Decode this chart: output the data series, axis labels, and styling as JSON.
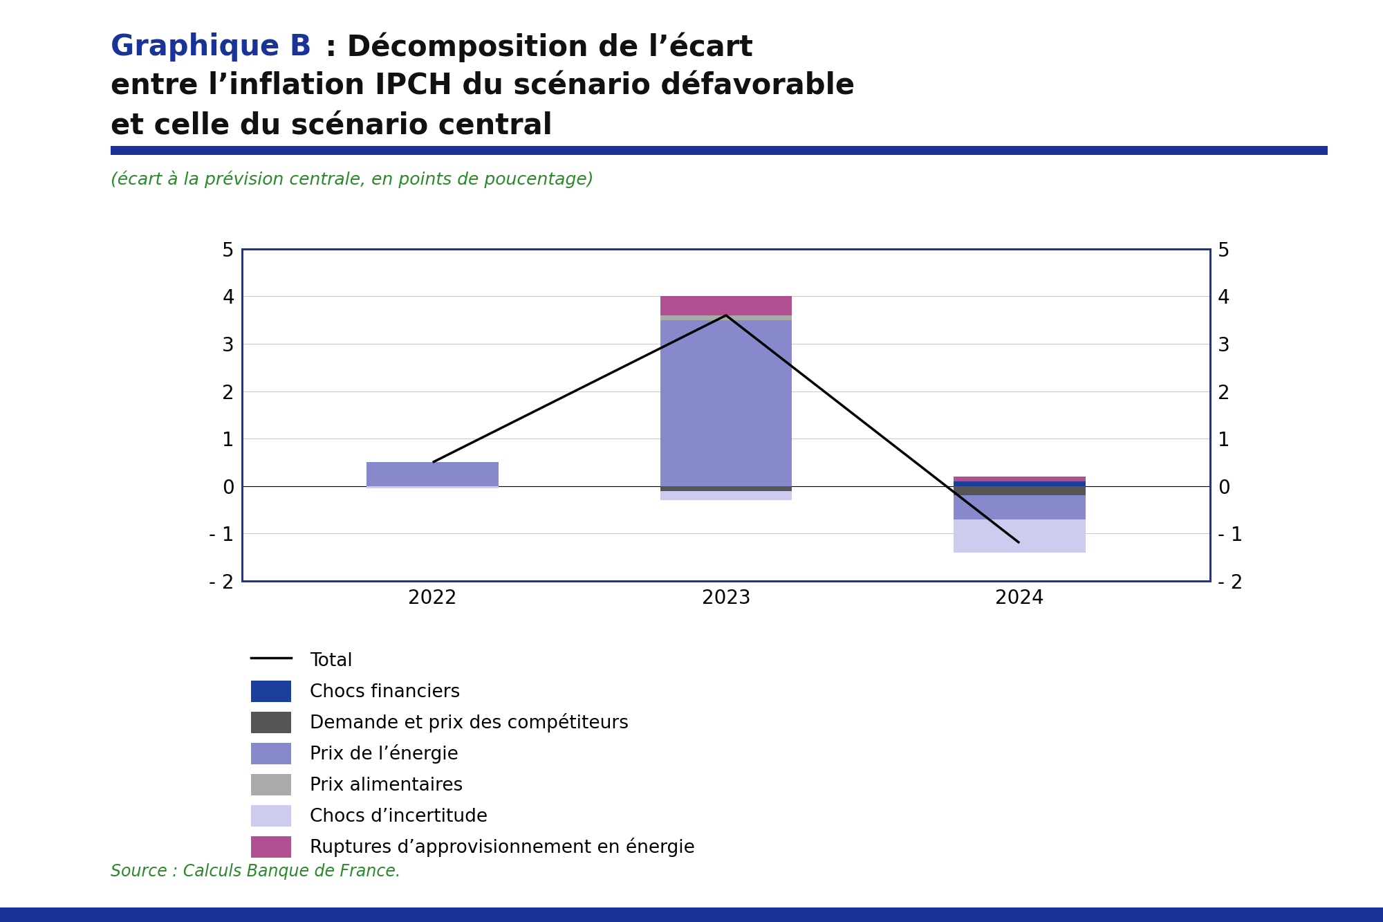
{
  "years": [
    2022,
    2023,
    2024
  ],
  "bar_width": 0.45,
  "ylim": [
    -2,
    5
  ],
  "yticks": [
    -2,
    -1,
    0,
    1,
    2,
    3,
    4,
    5
  ],
  "ytick_labels": [
    "- 2",
    "- 1",
    "0",
    "1",
    "2",
    "3",
    "4",
    "5"
  ],
  "line_values": [
    0.5,
    3.6,
    -1.2
  ],
  "components_order": [
    "chocs_financiers",
    "demande_competiteurs",
    "prix_energie",
    "prix_alimentaires",
    "chocs_incertitude",
    "ruptures_energie"
  ],
  "components": {
    "chocs_financiers": {
      "color": "#1c3f9e",
      "label": "Chocs financiers",
      "values": [
        0.0,
        0.0,
        0.1
      ]
    },
    "demande_competiteurs": {
      "color": "#555555",
      "label": "Demande et prix des compétiteurs",
      "values": [
        0.0,
        -0.1,
        -0.2
      ]
    },
    "prix_energie": {
      "color": "#8888cc",
      "label": "Prix de l’énergie",
      "values": [
        0.5,
        3.5,
        -0.5
      ]
    },
    "prix_alimentaires": {
      "color": "#aaaaaa",
      "label": "Prix alimentaires",
      "values": [
        0.0,
        0.1,
        0.0
      ]
    },
    "chocs_incertitude": {
      "color": "#ccccee",
      "label": "Chocs d’incertitude",
      "values": [
        -0.05,
        -0.2,
        -0.7
      ]
    },
    "ruptures_energie": {
      "color": "#b05090",
      "label": "Ruptures d’approvisionnement en énergie",
      "values": [
        0.0,
        0.4,
        0.1
      ]
    }
  },
  "title_bold": "Graphique B",
  "title_rest_line1": " : Décomposition de l’écart",
  "title_line2": "entre l’inflation IPCH du scénario défavorable",
  "title_line3": "et celle du scénario central",
  "subtitle": "(écart à la prévision centrale, en points de poucentage)",
  "source_text": "Source : Calculs Banque de France.",
  "background_color": "#ffffff",
  "grid_color": "#cccccc",
  "axis_border_color": "#1a3399",
  "title_blue": "#1a3399",
  "subtitle_color": "#2a8a2a",
  "source_color": "#2a8a2a",
  "line_color": "#000000",
  "line_width": 2.5,
  "deco_bar_color": "#1a3399"
}
